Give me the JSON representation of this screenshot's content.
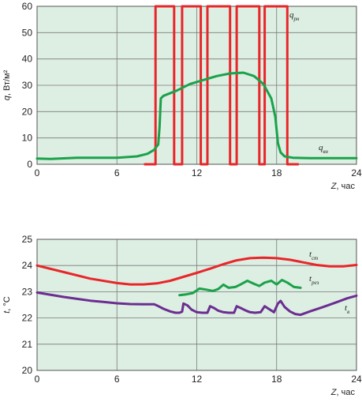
{
  "chart_data": [
    {
      "type": "line",
      "ylabel_main": "q",
      "ylabel_unit": ", Вт/м²",
      "xlabel_main": "Z",
      "xlabel_unit": ", час",
      "xlim": [
        0,
        24
      ],
      "ylim": [
        0,
        60
      ],
      "xticks": [
        "0",
        "6",
        "12",
        "18",
        "24"
      ],
      "yticks": [
        "0",
        "10",
        "20",
        "30",
        "40",
        "50",
        "60"
      ],
      "grid": true,
      "series": [
        {
          "name_main": "q",
          "name_sub": "рн",
          "color": "#e8262a",
          "x": [
            8.1,
            8.9,
            8.9,
            10.3,
            10.3,
            10.9,
            10.9,
            12.3,
            12.3,
            12.8,
            12.8,
            14.5,
            14.5,
            15.0,
            15.0,
            16.7,
            16.7,
            17.1,
            17.1,
            18.8,
            18.8,
            19.6
          ],
          "y": [
            0,
            0,
            60,
            60,
            0,
            0,
            60,
            60,
            0,
            0,
            60,
            60,
            0,
            0,
            60,
            60,
            0,
            0,
            60,
            60,
            0,
            0
          ]
        },
        {
          "name_main": "q",
          "name_sub": "вн",
          "color": "#1aa24a",
          "x": [
            0,
            1.0,
            3.0,
            6.0,
            7.5,
            8.3,
            8.8,
            9.1,
            9.2,
            9.3,
            9.5,
            10.5,
            11.5,
            12.5,
            13.5,
            14.5,
            15.5,
            16.3,
            17.0,
            17.6,
            17.9,
            18.1,
            18.3,
            18.6,
            19.2,
            20.5,
            22.0,
            24.0
          ],
          "y": [
            2.2,
            2.0,
            2.5,
            2.5,
            3.0,
            4.0,
            5.5,
            7.5,
            14.0,
            25.0,
            26.0,
            28.0,
            30.5,
            32.0,
            33.5,
            34.5,
            34.8,
            33.5,
            30.5,
            25.0,
            18.0,
            8.0,
            4.5,
            3.0,
            2.5,
            2.3,
            2.3,
            2.3
          ]
        }
      ]
    },
    {
      "type": "line",
      "ylabel_main": "t",
      "ylabel_unit": ", °C",
      "xlabel_main": "Z",
      "xlabel_unit": ", час",
      "xlim": [
        0,
        24
      ],
      "ylim": [
        20,
        25
      ],
      "xticks": [
        "0",
        "6",
        "12",
        "18",
        "24"
      ],
      "yticks": [
        "20",
        "21",
        "22",
        "23",
        "24",
        "25"
      ],
      "grid": true,
      "series": [
        {
          "name_main": "t",
          "name_sub": "ст",
          "color": "#e8262a",
          "x": [
            0,
            2,
            4,
            6,
            7,
            8,
            9,
            10,
            11,
            12,
            13,
            14,
            15,
            16,
            17,
            18,
            19,
            20,
            21,
            22,
            23,
            24
          ],
          "y": [
            24.0,
            23.75,
            23.5,
            23.33,
            23.28,
            23.28,
            23.32,
            23.42,
            23.57,
            23.72,
            23.88,
            24.05,
            24.2,
            24.28,
            24.3,
            24.28,
            24.22,
            24.12,
            24.02,
            23.97,
            23.97,
            24.02
          ]
        },
        {
          "name_main": "t",
          "name_sub": "рез",
          "color": "#1aa24a",
          "x": [
            10.7,
            11.2,
            11.7,
            12.2,
            12.7,
            13.2,
            13.6,
            14.0,
            14.4,
            14.9,
            15.3,
            15.8,
            16.3,
            16.7,
            17.1,
            17.6,
            18.0,
            18.4,
            18.8,
            19.3,
            19.8
          ],
          "y": [
            22.87,
            22.9,
            22.95,
            23.12,
            23.08,
            23.03,
            23.1,
            23.27,
            23.15,
            23.18,
            23.28,
            23.42,
            23.3,
            23.22,
            23.35,
            23.42,
            23.28,
            23.45,
            23.35,
            23.18,
            23.15
          ]
        },
        {
          "name_main": "t",
          "name_sub": "в",
          "color": "#6b2d91",
          "x": [
            0,
            2,
            4,
            6,
            7,
            8,
            8.8,
            9.0,
            9.5,
            10.0,
            10.4,
            10.7,
            10.9,
            11.0,
            11.3,
            11.6,
            12.0,
            12.4,
            12.8,
            13.0,
            13.3,
            13.6,
            14.0,
            14.4,
            14.8,
            15.0,
            15.3,
            15.7,
            16.0,
            16.4,
            16.8,
            17.1,
            17.4,
            17.8,
            18.1,
            18.3,
            18.6,
            19.0,
            19.4,
            19.8,
            20.5,
            21.5,
            22.5,
            23.3,
            24.0
          ],
          "y": [
            22.97,
            22.8,
            22.66,
            22.56,
            22.53,
            22.52,
            22.52,
            22.48,
            22.35,
            22.25,
            22.2,
            22.2,
            22.24,
            22.55,
            22.48,
            22.32,
            22.22,
            22.2,
            22.2,
            22.45,
            22.38,
            22.28,
            22.22,
            22.2,
            22.2,
            22.45,
            22.38,
            22.28,
            22.22,
            22.2,
            22.22,
            22.45,
            22.35,
            22.22,
            22.55,
            22.65,
            22.42,
            22.25,
            22.15,
            22.12,
            22.25,
            22.42,
            22.6,
            22.75,
            22.85
          ]
        }
      ]
    }
  ]
}
